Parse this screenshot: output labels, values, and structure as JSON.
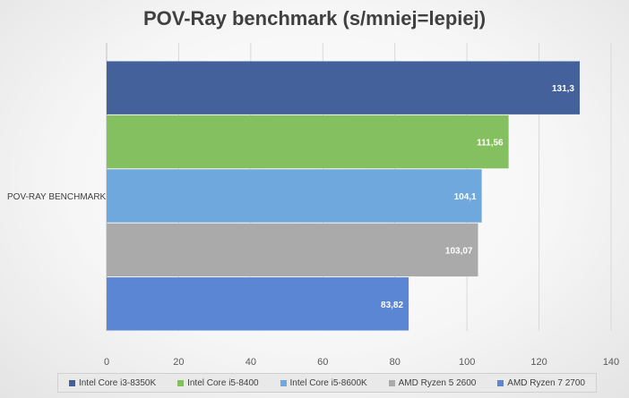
{
  "chart_data": {
    "type": "bar",
    "orientation": "horizontal",
    "title": "POV-Ray benchmark (s/mniej=lepiej)",
    "categories": [
      "POV-RAY BENCHMARK"
    ],
    "series": [
      {
        "name": "Intel Core i3-8350K",
        "values": [
          131.3
        ],
        "label": "131,3",
        "color": "#44619b"
      },
      {
        "name": "Intel Core i5-8400",
        "values": [
          111.56
        ],
        "label": "111,56",
        "color": "#84c060"
      },
      {
        "name": "Intel Core i5-8600K",
        "values": [
          104.1
        ],
        "label": "104,1",
        "color": "#6fa8dc"
      },
      {
        "name": "AMD Ryzen 5 2600",
        "values": [
          103.07
        ],
        "label": "103,07",
        "color": "#aaaaaa"
      },
      {
        "name": "AMD Ryzen 7 2700",
        "values": [
          83.82
        ],
        "label": "83,82",
        "color": "#5b86d4"
      }
    ],
    "xlim": [
      0,
      140
    ],
    "xticks": [
      "0",
      "20",
      "40",
      "60",
      "80",
      "100",
      "120",
      "140"
    ],
    "grid": true,
    "legend": "bottom"
  }
}
